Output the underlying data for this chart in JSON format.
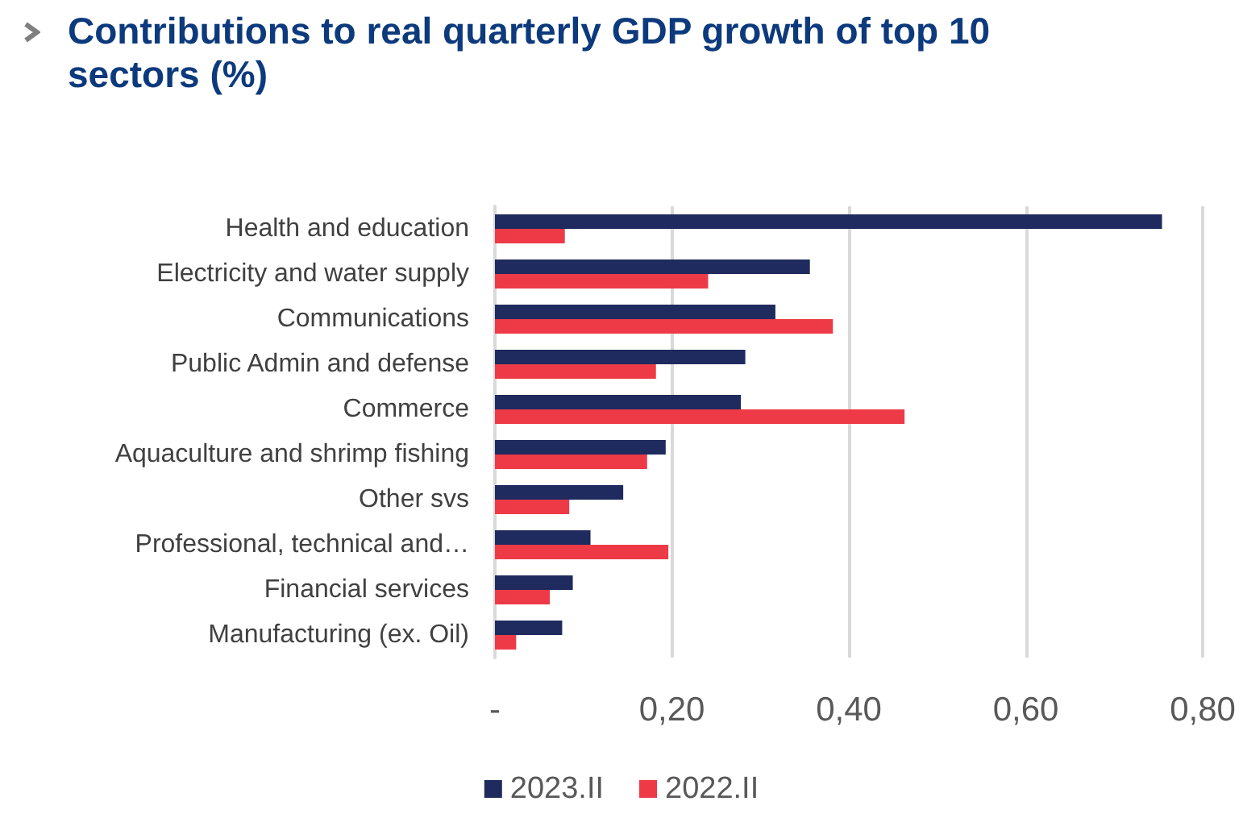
{
  "chart_data": {
    "type": "bar",
    "orientation": "horizontal",
    "title": "Contributions to real quarterly GDP growth of top 10 sectors (%)",
    "categories": [
      "Health and education",
      "Electricity and water supply",
      "Communications",
      "Public Admin and defense",
      "Commerce",
      "Aquaculture and shrimp fishing",
      "Other svs",
      "Professional, technical and…",
      "Financial services",
      "Manufacturing (ex. Oil)"
    ],
    "series": [
      {
        "name": "2023.II",
        "color": "#1f2a5e",
        "values": [
          0.754,
          0.356,
          0.317,
          0.283,
          0.278,
          0.193,
          0.145,
          0.108,
          0.088,
          0.076
        ]
      },
      {
        "name": "2022.II",
        "color": "#ee3a47",
        "values": [
          0.079,
          0.241,
          0.382,
          0.182,
          0.463,
          0.172,
          0.084,
          0.196,
          0.062,
          0.024
        ]
      }
    ],
    "xlim": [
      0,
      0.8
    ],
    "xticks": [
      {
        "value": 0,
        "label": "-"
      },
      {
        "value": 0.2,
        "label": "0,20"
      },
      {
        "value": 0.4,
        "label": "0,40"
      },
      {
        "value": 0.6,
        "label": "0,60"
      },
      {
        "value": 0.8,
        "label": "0,80"
      }
    ],
    "grid": "x",
    "legend": "bottom"
  }
}
